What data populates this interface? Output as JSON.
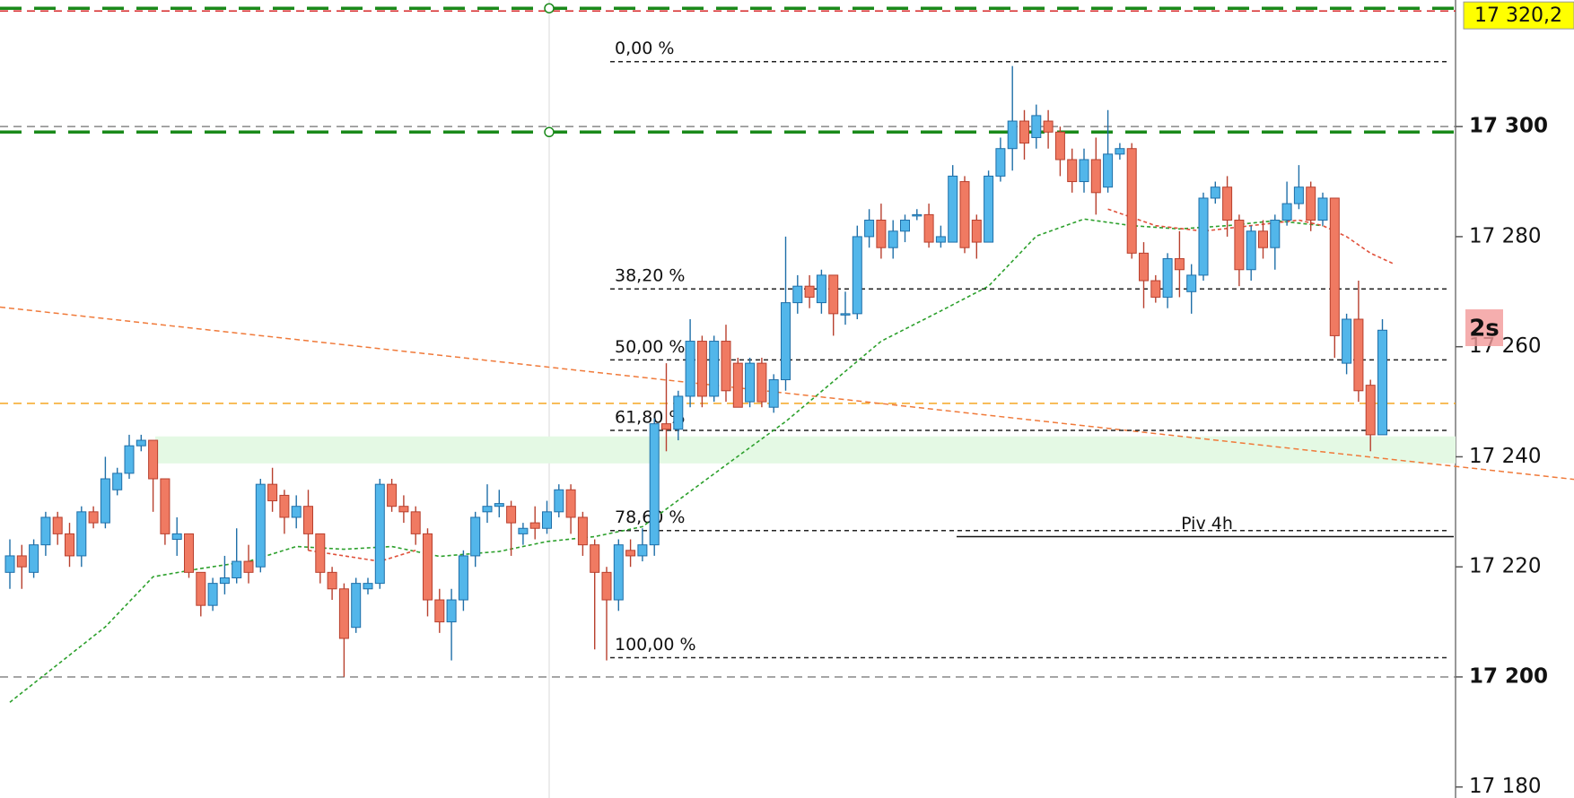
{
  "chart_data": {
    "type": "candlestick",
    "ylim": [
      17178,
      17323
    ],
    "yticks": [
      {
        "value": 17180,
        "label": "17 180"
      },
      {
        "value": 17200,
        "label": "17 200",
        "bold": true
      },
      {
        "value": 17220,
        "label": "17 220"
      },
      {
        "value": 17240,
        "label": "17 240"
      },
      {
        "value": 17260,
        "label": "17 260"
      },
      {
        "value": 17280,
        "label": "17 280"
      },
      {
        "value": 17300,
        "label": "17 300",
        "bold": true
      }
    ],
    "bull_color": "#52b6ea",
    "bull_edge": "#1f6fa8",
    "bear_color": "#f07a62",
    "bear_edge": "#b8402e",
    "candles": [
      [
        17219,
        17225,
        17216,
        17222
      ],
      [
        17222,
        17224,
        17216,
        17220
      ],
      [
        17219,
        17225,
        17218,
        17224
      ],
      [
        17224,
        17230,
        17222,
        17229
      ],
      [
        17229,
        17230,
        17224,
        17226
      ],
      [
        17226,
        17228,
        17220,
        17222
      ],
      [
        17222,
        17231,
        17220,
        17230
      ],
      [
        17230,
        17231,
        17227,
        17228
      ],
      [
        17228,
        17240,
        17227,
        17236
      ],
      [
        17234,
        17238,
        17233,
        17237
      ],
      [
        17237,
        17244,
        17236,
        17242
      ],
      [
        17242,
        17244,
        17241,
        17243
      ],
      [
        17243,
        17243,
        17230,
        17236
      ],
      [
        17236,
        17236,
        17224,
        17226
      ],
      [
        17225,
        17229,
        17222,
        17226
      ],
      [
        17226,
        17226,
        17218,
        17219
      ],
      [
        17219,
        17219,
        17211,
        17213
      ],
      [
        17213,
        17218,
        17212,
        17217
      ],
      [
        17217,
        17222,
        17215,
        17218
      ],
      [
        17218,
        17227,
        17217,
        17221
      ],
      [
        17221,
        17224,
        17217,
        17219
      ],
      [
        17220,
        17236,
        17219,
        17235
      ],
      [
        17235,
        17238,
        17230,
        17232
      ],
      [
        17233,
        17234,
        17226,
        17229
      ],
      [
        17229,
        17233,
        17227,
        17231
      ],
      [
        17231,
        17234,
        17223,
        17226
      ],
      [
        17226,
        17226,
        17217,
        17219
      ],
      [
        17219,
        17220,
        17214,
        17216
      ],
      [
        17216,
        17217,
        17200,
        17207
      ],
      [
        17209,
        17218,
        17208,
        17217
      ],
      [
        17216,
        17218,
        17215,
        17217
      ],
      [
        17217,
        17236,
        17216,
        17235
      ],
      [
        17235,
        17236,
        17230,
        17231
      ],
      [
        17231,
        17233,
        17228,
        17230
      ],
      [
        17230,
        17231,
        17224,
        17226
      ],
      [
        17226,
        17227,
        17211,
        17214
      ],
      [
        17214,
        17216,
        17208,
        17210
      ],
      [
        17210,
        17216,
        17203,
        17214
      ],
      [
        17214,
        17223,
        17212,
        17222
      ],
      [
        17222,
        17230,
        17220,
        17229
      ],
      [
        17230,
        17235,
        17228,
        17231
      ],
      [
        17231,
        17234,
        17229,
        17231.5
      ],
      [
        17231,
        17232,
        17222,
        17228
      ],
      [
        17226,
        17228,
        17224,
        17227
      ],
      [
        17228,
        17231,
        17225,
        17227
      ],
      [
        17227,
        17232,
        17226,
        17230
      ],
      [
        17230,
        17235,
        17229,
        17234
      ],
      [
        17234,
        17235,
        17226,
        17229
      ],
      [
        17229,
        17230,
        17222,
        17224
      ],
      [
        17224,
        17225,
        17205,
        17219
      ],
      [
        17219,
        17220,
        17203,
        17214
      ],
      [
        17214,
        17225,
        17212,
        17224
      ],
      [
        17223,
        17225,
        17220,
        17222
      ],
      [
        17222,
        17227,
        17221,
        17224
      ],
      [
        17224,
        17247,
        17222,
        17246
      ],
      [
        17246,
        17257,
        17241,
        17245
      ],
      [
        17245,
        17252,
        17243,
        17251
      ],
      [
        17251,
        17265,
        17249,
        17261
      ],
      [
        17261,
        17262,
        17249,
        17251
      ],
      [
        17251,
        17262,
        17250,
        17261
      ],
      [
        17261,
        17264,
        17250,
        17252
      ],
      [
        17257,
        17258,
        17249,
        17249
      ],
      [
        17250,
        17258,
        17249,
        17257
      ],
      [
        17257,
        17258,
        17249,
        17250
      ],
      [
        17249,
        17255,
        17248,
        17254
      ],
      [
        17254,
        17280,
        17252,
        17268
      ],
      [
        17268,
        17273,
        17266,
        17271
      ],
      [
        17271,
        17273,
        17267,
        17269
      ],
      [
        17268,
        17274,
        17266,
        17273
      ],
      [
        17273,
        17273,
        17262,
        17266
      ],
      [
        17266,
        17270,
        17264,
        17266
      ],
      [
        17266,
        17282,
        17265,
        17280
      ],
      [
        17280,
        17285,
        17278,
        17283
      ],
      [
        17283,
        17286,
        17276,
        17278
      ],
      [
        17278,
        17283,
        17276,
        17281
      ],
      [
        17281,
        17284,
        17279,
        17283
      ],
      [
        17284,
        17285,
        17283,
        17284
      ],
      [
        17284,
        17286,
        17278,
        17279
      ],
      [
        17279,
        17282,
        17278,
        17280
      ],
      [
        17279,
        17293,
        17279,
        17291
      ],
      [
        17290,
        17291,
        17277,
        17278
      ],
      [
        17283,
        17284,
        17276,
        17279
      ],
      [
        17279,
        17292,
        17279,
        17291
      ],
      [
        17291,
        17298,
        17290,
        17296
      ],
      [
        17296,
        17311,
        17292,
        17301
      ],
      [
        17301,
        17303,
        17294,
        17297
      ],
      [
        17298,
        17304,
        17296,
        17302
      ],
      [
        17301,
        17303,
        17296,
        17299
      ],
      [
        17299,
        17300,
        17291,
        17294
      ],
      [
        17294,
        17296,
        17288,
        17290
      ],
      [
        17290,
        17296,
        17288,
        17294
      ],
      [
        17294,
        17298,
        17284,
        17288
      ],
      [
        17289,
        17303,
        17288,
        17295
      ],
      [
        17295,
        17297,
        17294,
        17296
      ],
      [
        17296,
        17297,
        17276,
        17277
      ],
      [
        17277,
        17279,
        17267,
        17272
      ],
      [
        17272,
        17273,
        17268,
        17269
      ],
      [
        17269,
        17277,
        17267,
        17276
      ],
      [
        17276,
        17281,
        17269,
        17274
      ],
      [
        17270,
        17275,
        17266,
        17273
      ],
      [
        17273,
        17288,
        17272,
        17287
      ],
      [
        17287,
        17290,
        17286,
        17289
      ],
      [
        17289,
        17291,
        17280,
        17283
      ],
      [
        17283,
        17284,
        17271,
        17274
      ],
      [
        17274,
        17282,
        17272,
        17281
      ],
      [
        17281,
        17283,
        17276,
        17278
      ],
      [
        17278,
        17284,
        17274,
        17283
      ],
      [
        17283,
        17290,
        17282,
        17286
      ],
      [
        17286,
        17293,
        17285,
        17289
      ],
      [
        17289,
        17290,
        17281,
        17283
      ],
      [
        17283,
        17288,
        17282,
        17287
      ],
      [
        17287,
        17287,
        17258,
        17262
      ],
      [
        17257,
        17266,
        17255,
        17265
      ],
      [
        17265,
        17272,
        17250,
        17252
      ],
      [
        17253,
        17254,
        17241,
        17244
      ],
      [
        17244,
        17265,
        17244,
        17263
      ]
    ],
    "moving_averages": [
      {
        "color": "#2ca02c",
        "x": [
          0,
          8,
          12,
          16,
          20,
          24,
          28,
          32,
          36,
          41,
          45,
          49,
          53,
          57,
          61,
          65,
          69,
          73,
          78,
          82,
          86,
          90,
          94,
          98,
          102,
          106,
          110
        ],
        "values": [
          17195.4,
          17209.1,
          17218.2,
          17219.7,
          17221.0,
          17223.7,
          17223.2,
          17223.7,
          17221.9,
          17222.8,
          17224.6,
          17225.5,
          17227.3,
          17233.7,
          17240.1,
          17246.4,
          17253.7,
          17261.0,
          17266.5,
          17271.0,
          17280.1,
          17283.2,
          17282.0,
          17281.4,
          17282.0,
          17282.9,
          17282.0
        ]
      },
      {
        "color": "#e0503a",
        "x": [
          25,
          28,
          31,
          34,
          60,
          92,
          96,
          100,
          104,
          108,
          110,
          112,
          114,
          116
        ],
        "values": [
          17223,
          17222,
          17221,
          17223,
          null,
          17285,
          17282,
          17281,
          17282,
          17283,
          17282,
          17280,
          17277,
          17275
        ]
      }
    ],
    "levels": [
      {
        "price": 17321,
        "color": "#d62728",
        "style": "dashed"
      },
      {
        "price": 17321.5,
        "color": "#1a8a1a",
        "style": "long-dashed"
      },
      {
        "price": 17300,
        "color": "#888888",
        "style": "dashed"
      },
      {
        "price": 17299,
        "color": "#1a8a1a",
        "style": "long-dashed"
      },
      {
        "price": 17200,
        "color": "#888888",
        "style": "dashed"
      },
      {
        "price": 17249.7,
        "color": "#f5a623",
        "style": "dashed"
      }
    ],
    "zone": {
      "low": 17238.8,
      "high": 17243.7,
      "color": "#e4f9e4"
    },
    "trendline": {
      "start": 17267.2,
      "end": 17235.9,
      "color": "#f07a3a"
    },
    "fibonacci": [
      {
        "label": "0,00 %",
        "price": 17311.8
      },
      {
        "label": "38,20 %",
        "price": 17270.5
      },
      {
        "label": "50,00 %",
        "price": 17257.6
      },
      {
        "label": "61,80 %",
        "price": 17244.8
      },
      {
        "label": "78,60 %",
        "price": 17226.6
      },
      {
        "label": "100,00 %",
        "price": 17203.5
      }
    ],
    "pivot": {
      "label": "Piv 4h",
      "price": 17225.5
    },
    "price_tag": {
      "value": 17320.2,
      "label": "17 320,2"
    },
    "timer": "2s"
  }
}
